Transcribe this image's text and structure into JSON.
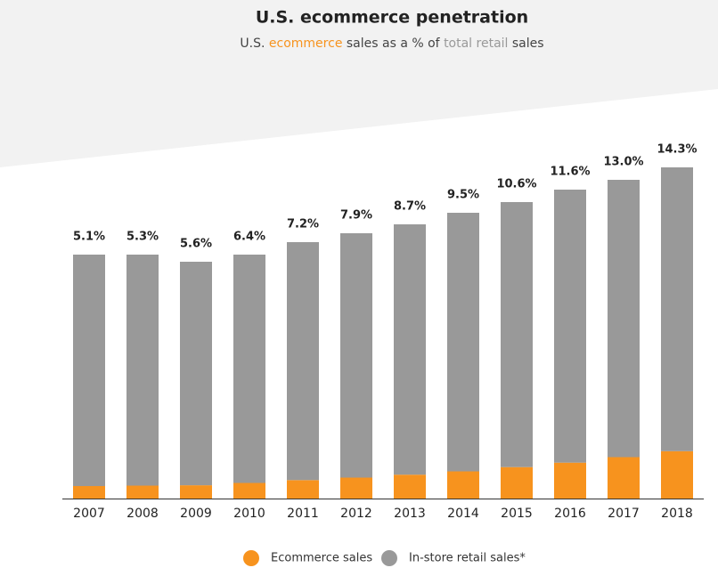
{
  "chart_data": {
    "type": "stacked_bar",
    "title": "U.S. ecommerce penetration",
    "subtitle": [
      "U.S. ",
      "ecommerce",
      " sales as a % of ",
      "total retail",
      " sales"
    ],
    "categories": [
      "2007",
      "2008",
      "2009",
      "2010",
      "2011",
      "2012",
      "2013",
      "2014",
      "2015",
      "2016",
      "2017",
      "2018"
    ],
    "series": [
      {
        "name": "Ecommerce sales",
        "color": "#f7931e",
        "values": [
          14.0,
          14.5,
          14.9,
          17.5,
          20.7,
          23.5,
          26.8,
          30.5,
          35.3,
          40.3,
          46.5,
          53.2
        ]
      },
      {
        "name": "In-store retail sales*",
        "color": "#999999",
        "values": [
          260.0,
          259.5,
          251.1,
          256.5,
          267.3,
          274.5,
          281.2,
          290.5,
          297.7,
          306.7,
          311.5,
          318.8
        ]
      }
    ],
    "annotations": [
      "5.1%",
      "5.3%",
      "5.6%",
      "6.4%",
      "7.2%",
      "7.9%",
      "8.7%",
      "9.5%",
      "10.6%",
      "11.6%",
      "13.0%",
      "14.3%"
    ],
    "ylim": [
      0,
      400
    ]
  }
}
